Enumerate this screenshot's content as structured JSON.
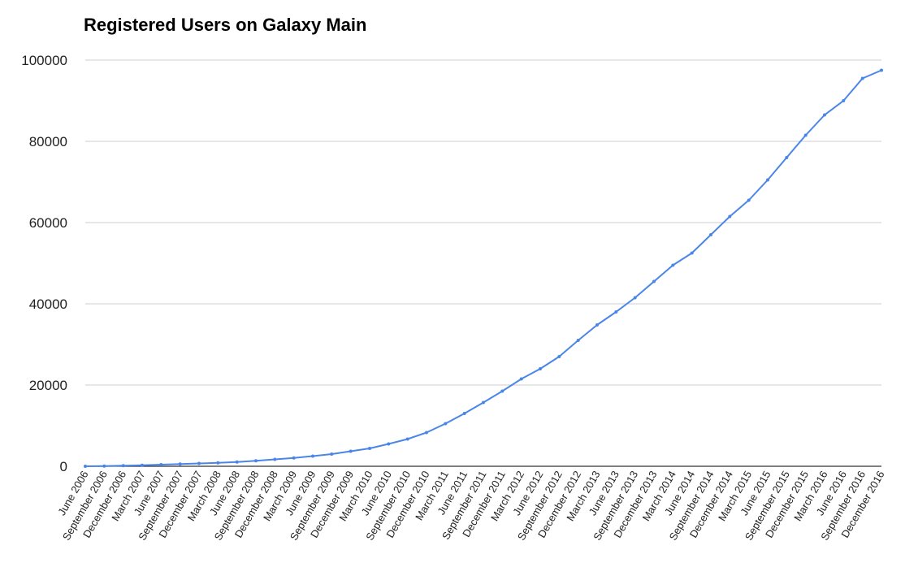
{
  "chart_data": {
    "type": "line",
    "title": "Registered Users on Galaxy Main",
    "xlabel": "",
    "ylabel": "",
    "ylim": [
      0,
      100000
    ],
    "yticks": [
      "0",
      "20000",
      "40000",
      "60000",
      "80000",
      "100000"
    ],
    "grid": true,
    "legend": "none",
    "x_tick_labels": [
      "June 2006",
      "September 2006",
      "December 2006",
      "March 2007",
      "June 2007",
      "September 2007",
      "December 2007",
      "March 2008",
      "June 2008",
      "September 2008",
      "December 2008",
      "March 2009",
      "June 2009",
      "September 2009",
      "December 2009",
      "March 2010",
      "June 2010",
      "September 2010",
      "December 2010",
      "March 2011",
      "June 2011",
      "September 2011",
      "December 2011",
      "March 2012",
      "June 2012",
      "September 2012",
      "December 2012",
      "March 2013",
      "June 2013",
      "September 2013",
      "December 2013",
      "March 2014",
      "June 2014",
      "September 2014",
      "December 2014",
      "March 2015",
      "June 2015",
      "September 2015",
      "December 2015",
      "March 2016",
      "June 2016",
      "September 2016",
      "December 2016"
    ],
    "series": [
      {
        "color": "#4a86e8",
        "x": [
          "June 2006",
          "September 2006",
          "December 2006",
          "March 2007",
          "June 2007",
          "September 2007",
          "December 2007",
          "March 2008",
          "June 2008",
          "September 2008",
          "December 2008",
          "March 2009",
          "June 2009",
          "September 2009",
          "December 2009",
          "March 2010",
          "June 2010",
          "September 2010",
          "December 2010",
          "March 2011",
          "June 2011",
          "September 2011",
          "December 2011",
          "March 2012",
          "June 2012",
          "September 2012",
          "December 2012",
          "March 2013",
          "June 2013",
          "September 2013",
          "December 2013",
          "March 2014",
          "June 2014",
          "September 2014",
          "December 2014",
          "March 2015",
          "June 2015",
          "September 2015",
          "December 2015",
          "March 2016",
          "June 2016",
          "September 2016",
          "December 2016"
        ],
        "values": [
          0,
          50,
          150,
          250,
          400,
          550,
          700,
          850,
          1050,
          1350,
          1700,
          2050,
          2500,
          3000,
          3700,
          4400,
          5500,
          6700,
          8300,
          10500,
          13000,
          15700,
          18500,
          21500,
          24000,
          27000,
          31000,
          34800,
          38000,
          41500,
          45500,
          49500,
          52500,
          57000,
          61500,
          65500,
          70500,
          76000,
          81500,
          86500,
          90000,
          95500,
          97500
        ]
      }
    ]
  }
}
